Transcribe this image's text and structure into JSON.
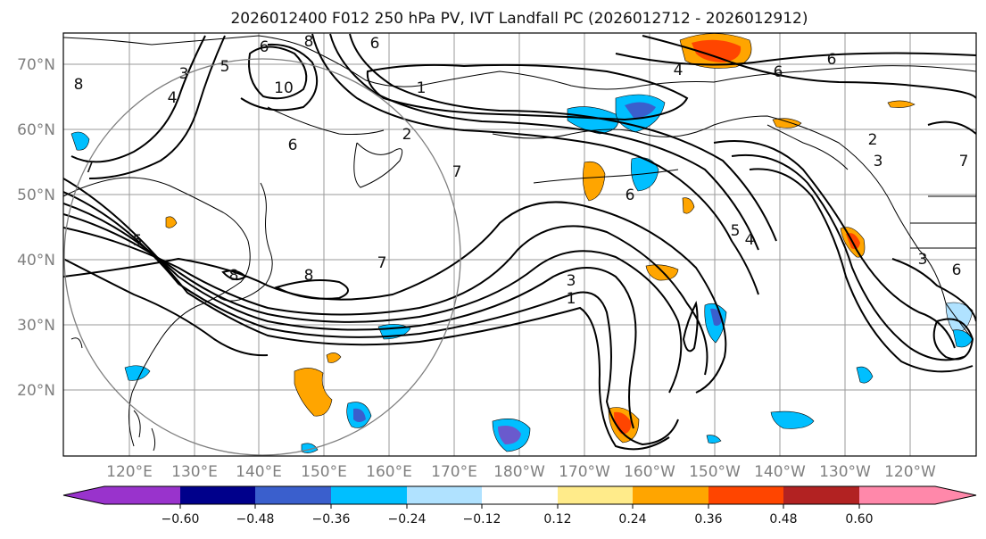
{
  "title": "2026012400 F012 250 hPa PV, IVT Landfall PC (2026012712 - 2026012912)",
  "map": {
    "lat_labels": [
      "70°N",
      "60°N",
      "50°N",
      "40°N",
      "30°N",
      "20°N"
    ],
    "lon_labels": [
      "120°E",
      "130°E",
      "140°E",
      "150°E",
      "160°E",
      "170°E",
      "180°W",
      "170°W",
      "160°W",
      "150°W",
      "140°W",
      "130°W",
      "120°W"
    ],
    "label_color": "#7f7f7f"
  },
  "contour_labels": [
    "8",
    "3",
    "4",
    "5",
    "6",
    "6",
    "8",
    "10",
    "1",
    "6",
    "7",
    "7",
    "2",
    "8",
    "8",
    "7",
    "6",
    "4",
    "6",
    "5",
    "3",
    "1",
    "2",
    "3",
    "7",
    "3",
    "6",
    "5",
    "6",
    "4"
  ],
  "colorbar": {
    "ticks": [
      "−0.60",
      "−0.48",
      "−0.36",
      "−0.24",
      "−0.12",
      "0.12",
      "0.24",
      "0.36",
      "0.48",
      "0.60"
    ],
    "colors": [
      "#9933cc",
      "#00008b",
      "#3a5fcd",
      "#00bfff",
      "#b0e2ff",
      "#ffffff",
      "#ffeb8a",
      "#ffa500",
      "#ff4500",
      "#b22222",
      "#ff88aa",
      "#ff88aa"
    ]
  },
  "shading_colors": {
    "deep_purple": "#6a5acd",
    "blue": "#3a5fcd",
    "cyan": "#00bfff",
    "light_blue": "#b0e2ff",
    "yellow": "#ffeb8a",
    "orange": "#ffa500",
    "red_orange": "#ff4500"
  }
}
